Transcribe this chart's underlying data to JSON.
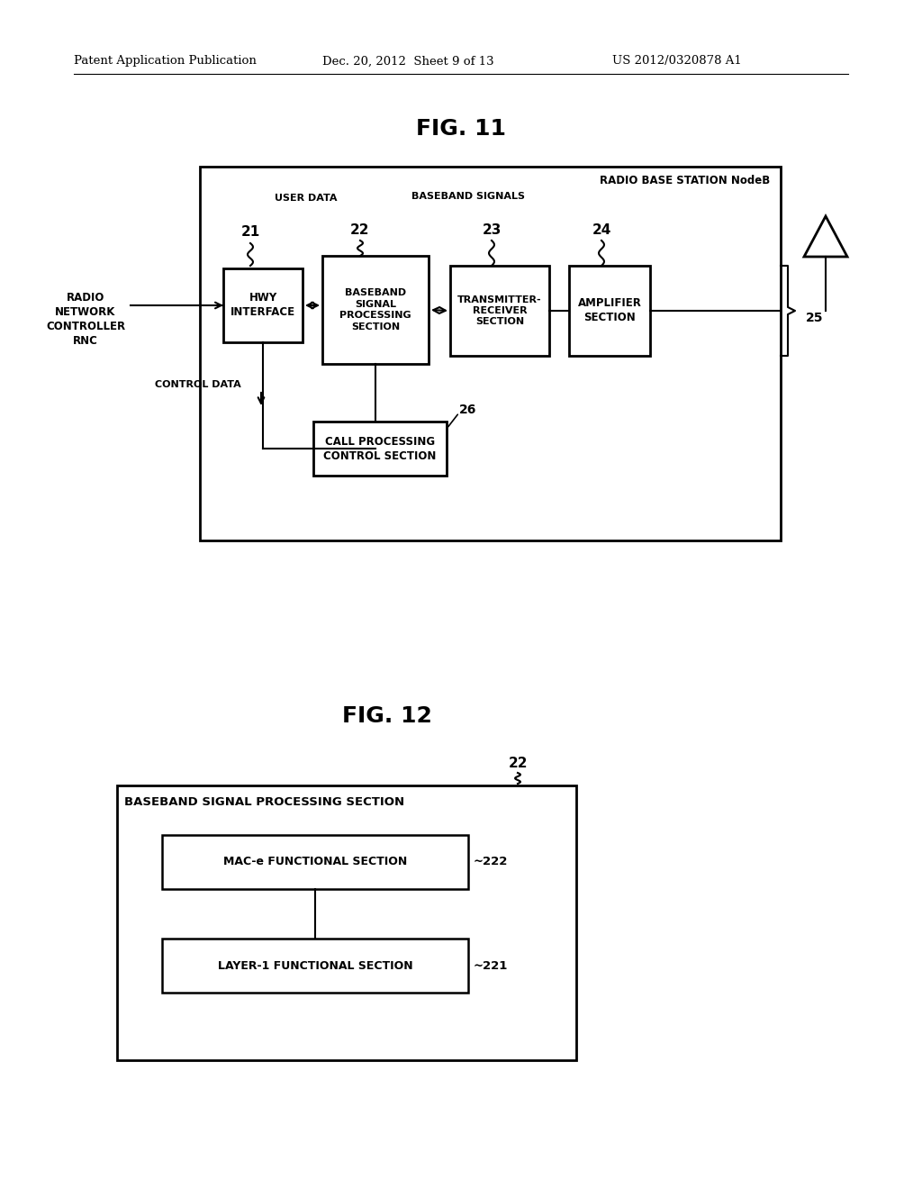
{
  "bg_color": "#ffffff",
  "header_text": "Patent Application Publication",
  "header_date": "Dec. 20, 2012  Sheet 9 of 13",
  "header_patent": "US 2012/0320878 A1",
  "fig11_title": "FIG. 11",
  "fig12_title": "FIG. 12",
  "fig11_outer_label": "RADIO BASE STATION NodeB",
  "rnc_label": "RADIO\nNETWORK\nCONTROLLER\nRNC",
  "user_data_label": "USER DATA",
  "baseband_signals_label": "BASEBAND SIGNALS",
  "control_data_label": "CONTROL DATA",
  "hwy_label": "HWY\nINTERFACE",
  "baseband_label": "BASEBAND\nSIGNAL\nPROCESSING\nSECTION",
  "transmitter_label": "TRANSMITTER-\nRECEIVER\nSECTION",
  "amplifier_label": "AMPLIFIER\nSECTION",
  "call_proc_label": "CALL PROCESSING\nCONTROL SECTION",
  "fig12_outer_label": "BASEBAND SIGNAL PROCESSING SECTION",
  "mac_label": "MAC-e FUNCTIONAL SECTION",
  "layer1_label": "LAYER-1 FUNCTIONAL SECTION"
}
